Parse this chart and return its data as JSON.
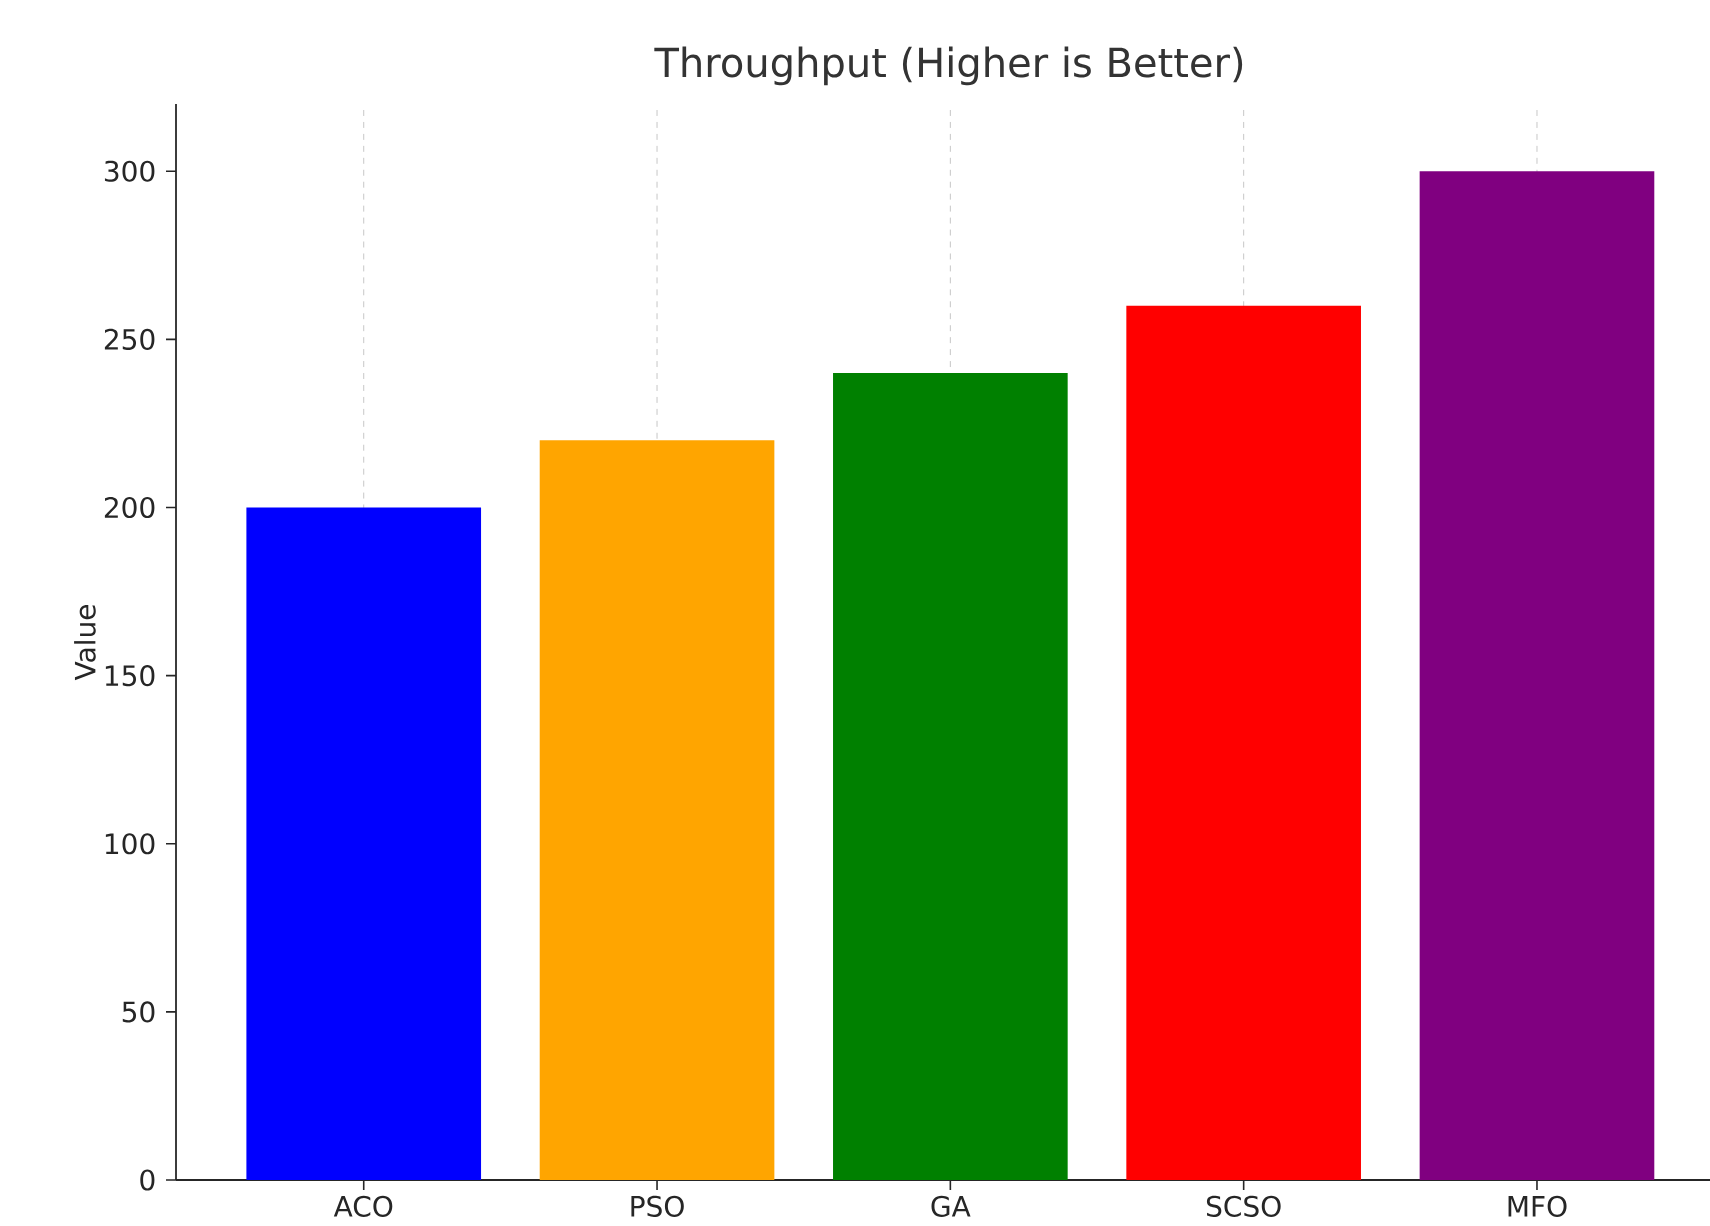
{
  "chart_data": {
    "type": "bar",
    "title": "Throughput (Higher is Better)",
    "ylabel": "Value",
    "categories": [
      "ACO",
      "PSO",
      "GA",
      "SCSO",
      "MFO"
    ],
    "values": [
      200,
      220,
      240,
      260,
      300
    ],
    "colors": [
      "#0000ff",
      "#ffa500",
      "#008000",
      "#ff0000",
      "#800080"
    ],
    "ylim": [
      0,
      320
    ],
    "yticks": [
      0,
      50,
      100,
      150,
      200,
      250,
      300
    ],
    "grid": "x"
  }
}
